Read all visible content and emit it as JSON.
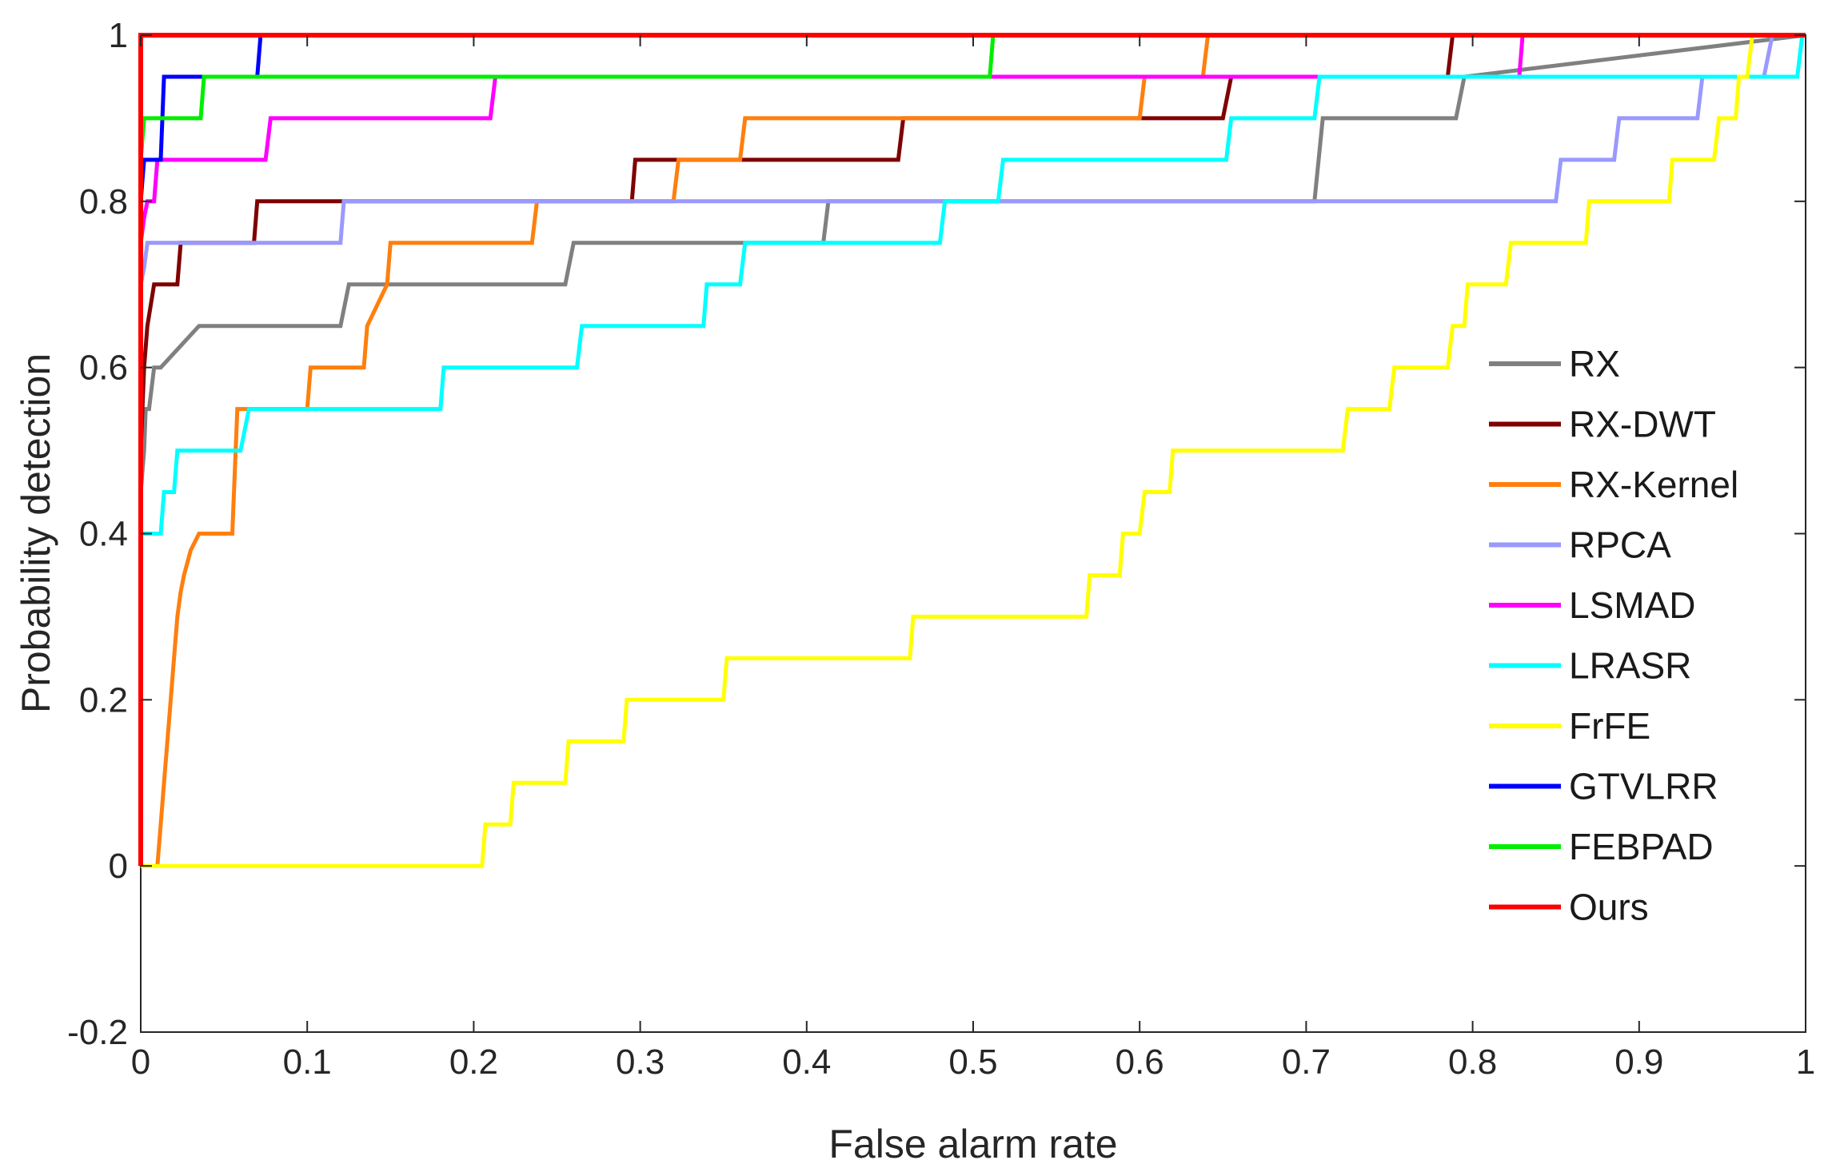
{
  "chart_data": {
    "type": "line",
    "title": "",
    "xlabel": "False alarm rate",
    "ylabel": "Probability detection",
    "xlim": [
      0,
      1
    ],
    "ylim": [
      -0.2,
      1
    ],
    "x_ticks": [
      0,
      0.1,
      0.2,
      0.3,
      0.4,
      0.5,
      0.6,
      0.7,
      0.8,
      0.9,
      1
    ],
    "x_tick_labels": [
      "0",
      "0.1",
      "0.2",
      "0.3",
      "0.4",
      "0.5",
      "0.6",
      "0.7",
      "0.8",
      "0.9",
      "1"
    ],
    "y_ticks": [
      -0.2,
      0,
      0.2,
      0.4,
      0.6,
      0.8,
      1
    ],
    "y_tick_labels": [
      "-0.2",
      "0",
      "0.2",
      "0.4",
      "0.6",
      "0.8",
      "1"
    ],
    "grid": false,
    "legend_position": "right",
    "series": [
      {
        "name": "RX",
        "color": "#808080",
        "x": [
          0,
          0.002,
          0.003,
          0.005,
          0.008,
          0.012,
          0.035,
          0.12,
          0.125,
          0.255,
          0.26,
          0.41,
          0.413,
          0.705,
          0.71,
          0.79,
          0.795,
          1
        ],
        "y": [
          0.45,
          0.5,
          0.55,
          0.55,
          0.6,
          0.6,
          0.65,
          0.65,
          0.7,
          0.7,
          0.75,
          0.75,
          0.8,
          0.8,
          0.9,
          0.9,
          0.95,
          1
        ]
      },
      {
        "name": "RX-DWT",
        "color": "#7f0000",
        "x": [
          0,
          0.002,
          0.004,
          0.008,
          0.012,
          0.022,
          0.024,
          0.068,
          0.07,
          0.12,
          0.122,
          0.295,
          0.297,
          0.455,
          0.458,
          0.6,
          0.605,
          0.65,
          0.655,
          0.785,
          0.788,
          1
        ],
        "y": [
          0.5,
          0.6,
          0.65,
          0.7,
          0.7,
          0.7,
          0.75,
          0.75,
          0.8,
          0.8,
          0.8,
          0.8,
          0.85,
          0.85,
          0.9,
          0.9,
          0.9,
          0.9,
          0.95,
          0.95,
          1,
          1
        ]
      },
      {
        "name": "RX-Kernel",
        "color": "#ff7f0e",
        "x": [
          0.01,
          0.012,
          0.014,
          0.016,
          0.018,
          0.02,
          0.022,
          0.024,
          0.026,
          0.03,
          0.035,
          0.055,
          0.057,
          0.058,
          0.1,
          0.102,
          0.134,
          0.136,
          0.148,
          0.15,
          0.235,
          0.238,
          0.32,
          0.323,
          0.36,
          0.363,
          0.6,
          0.603,
          0.638,
          0.641,
          1
        ],
        "y": [
          0,
          0.05,
          0.1,
          0.15,
          0.2,
          0.25,
          0.3,
          0.33,
          0.35,
          0.38,
          0.4,
          0.4,
          0.5,
          0.55,
          0.55,
          0.6,
          0.6,
          0.65,
          0.7,
          0.75,
          0.75,
          0.8,
          0.8,
          0.85,
          0.85,
          0.9,
          0.9,
          0.95,
          0.95,
          1,
          1
        ]
      },
      {
        "name": "RPCA",
        "color": "#9999ff",
        "x": [
          0,
          0.002,
          0.004,
          0.12,
          0.122,
          0.85,
          0.853,
          0.885,
          0.888,
          0.935,
          0.938,
          0.975,
          0.978,
          0.98,
          1
        ],
        "y": [
          0.7,
          0.72,
          0.75,
          0.75,
          0.8,
          0.8,
          0.85,
          0.85,
          0.9,
          0.9,
          0.95,
          0.95,
          0.98,
          1,
          1
        ]
      },
      {
        "name": "LSMAD",
        "color": "#ff00ff",
        "x": [
          0,
          0.002,
          0.004,
          0.008,
          0.01,
          0.075,
          0.078,
          0.21,
          0.213,
          0.828,
          0.83,
          1
        ],
        "y": [
          0.75,
          0.78,
          0.8,
          0.8,
          0.85,
          0.85,
          0.9,
          0.9,
          0.95,
          0.95,
          1,
          1
        ]
      },
      {
        "name": "LRASR",
        "color": "#00ffff",
        "x": [
          0,
          0.012,
          0.014,
          0.02,
          0.022,
          0.06,
          0.065,
          0.18,
          0.182,
          0.262,
          0.265,
          0.338,
          0.34,
          0.36,
          0.363,
          0.48,
          0.483,
          0.515,
          0.518,
          0.652,
          0.655,
          0.705,
          0.708,
          0.995,
          0.998,
          1
        ],
        "y": [
          0.4,
          0.4,
          0.45,
          0.45,
          0.5,
          0.5,
          0.55,
          0.55,
          0.6,
          0.6,
          0.65,
          0.65,
          0.7,
          0.7,
          0.75,
          0.75,
          0.8,
          0.8,
          0.85,
          0.85,
          0.9,
          0.9,
          0.95,
          0.95,
          1,
          1
        ]
      },
      {
        "name": "FrFE",
        "color": "#ffff00",
        "x": [
          0,
          0.205,
          0.207,
          0.222,
          0.224,
          0.255,
          0.257,
          0.29,
          0.292,
          0.35,
          0.352,
          0.462,
          0.464,
          0.568,
          0.57,
          0.588,
          0.59,
          0.6,
          0.603,
          0.618,
          0.62,
          0.722,
          0.725,
          0.75,
          0.753,
          0.785,
          0.788,
          0.795,
          0.797,
          0.82,
          0.823,
          0.845,
          0.848,
          0.868,
          0.87,
          0.918,
          0.92,
          0.945,
          0.948,
          0.958,
          0.96,
          0.965,
          0.968,
          1
        ],
        "y": [
          0,
          0,
          0.05,
          0.05,
          0.1,
          0.1,
          0.15,
          0.15,
          0.2,
          0.2,
          0.25,
          0.25,
          0.3,
          0.3,
          0.35,
          0.35,
          0.4,
          0.4,
          0.45,
          0.45,
          0.5,
          0.5,
          0.55,
          0.55,
          0.6,
          0.6,
          0.65,
          0.65,
          0.7,
          0.7,
          0.75,
          0.75,
          0.75,
          0.75,
          0.8,
          0.8,
          0.85,
          0.85,
          0.9,
          0.9,
          0.95,
          0.95,
          1,
          1
        ]
      },
      {
        "name": "GTVLRR",
        "color": "#0000ff",
        "x": [
          0,
          0.002,
          0.004,
          0.012,
          0.014,
          0.07,
          0.072,
          1
        ],
        "y": [
          0.8,
          0.85,
          0.85,
          0.85,
          0.95,
          0.95,
          1,
          1
        ]
      },
      {
        "name": "FEBPAD",
        "color": "#00ee00",
        "x": [
          0,
          0.002,
          0.004,
          0.036,
          0.038,
          0.51,
          0.512,
          1
        ],
        "y": [
          0.85,
          0.9,
          0.9,
          0.9,
          0.95,
          0.95,
          1,
          1
        ]
      },
      {
        "name": "Ours",
        "color": "#ff0000",
        "x": [
          0,
          0,
          0.002,
          1
        ],
        "y": [
          0,
          1,
          1,
          1
        ]
      }
    ]
  }
}
